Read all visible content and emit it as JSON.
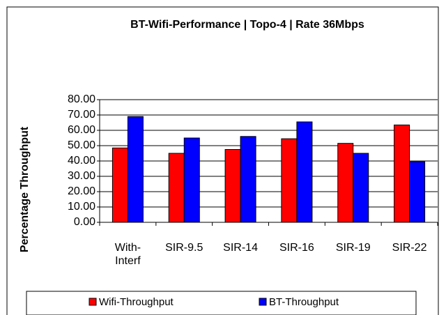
{
  "chart_data": {
    "type": "bar",
    "title": "BT-Wifi-Performance | Topo-4 | Rate 36Mbps",
    "y_label": "Percentage Throughput",
    "categories": [
      "With-Interf",
      "SIR-9.5",
      "SIR-14",
      "SIR-16",
      "SIR-19",
      "SIR-22"
    ],
    "series": [
      {
        "name": "Wifi-Throughput",
        "color": "#ff0000",
        "values": [
          48.5,
          45,
          47.5,
          54.5,
          51.5,
          63.5
        ]
      },
      {
        "name": "BT-Throughput",
        "color": "#0000ff",
        "values": [
          69,
          55,
          56,
          65.5,
          45,
          39.5
        ]
      }
    ],
    "ylim": [
      0,
      80
    ],
    "yticks": [
      {
        "value": 0,
        "label": "0.00"
      },
      {
        "value": 10,
        "label": "10.00"
      },
      {
        "value": 20,
        "label": "20.00"
      },
      {
        "value": 30,
        "label": "30.00"
      },
      {
        "value": 40,
        "label": "40.00"
      },
      {
        "value": 50,
        "label": "50.00"
      },
      {
        "value": 60,
        "label": "60.00"
      },
      {
        "value": 70,
        "label": "70.00"
      },
      {
        "value": 80,
        "label": "80.00"
      }
    ],
    "grid": true,
    "legend": "bottom"
  }
}
